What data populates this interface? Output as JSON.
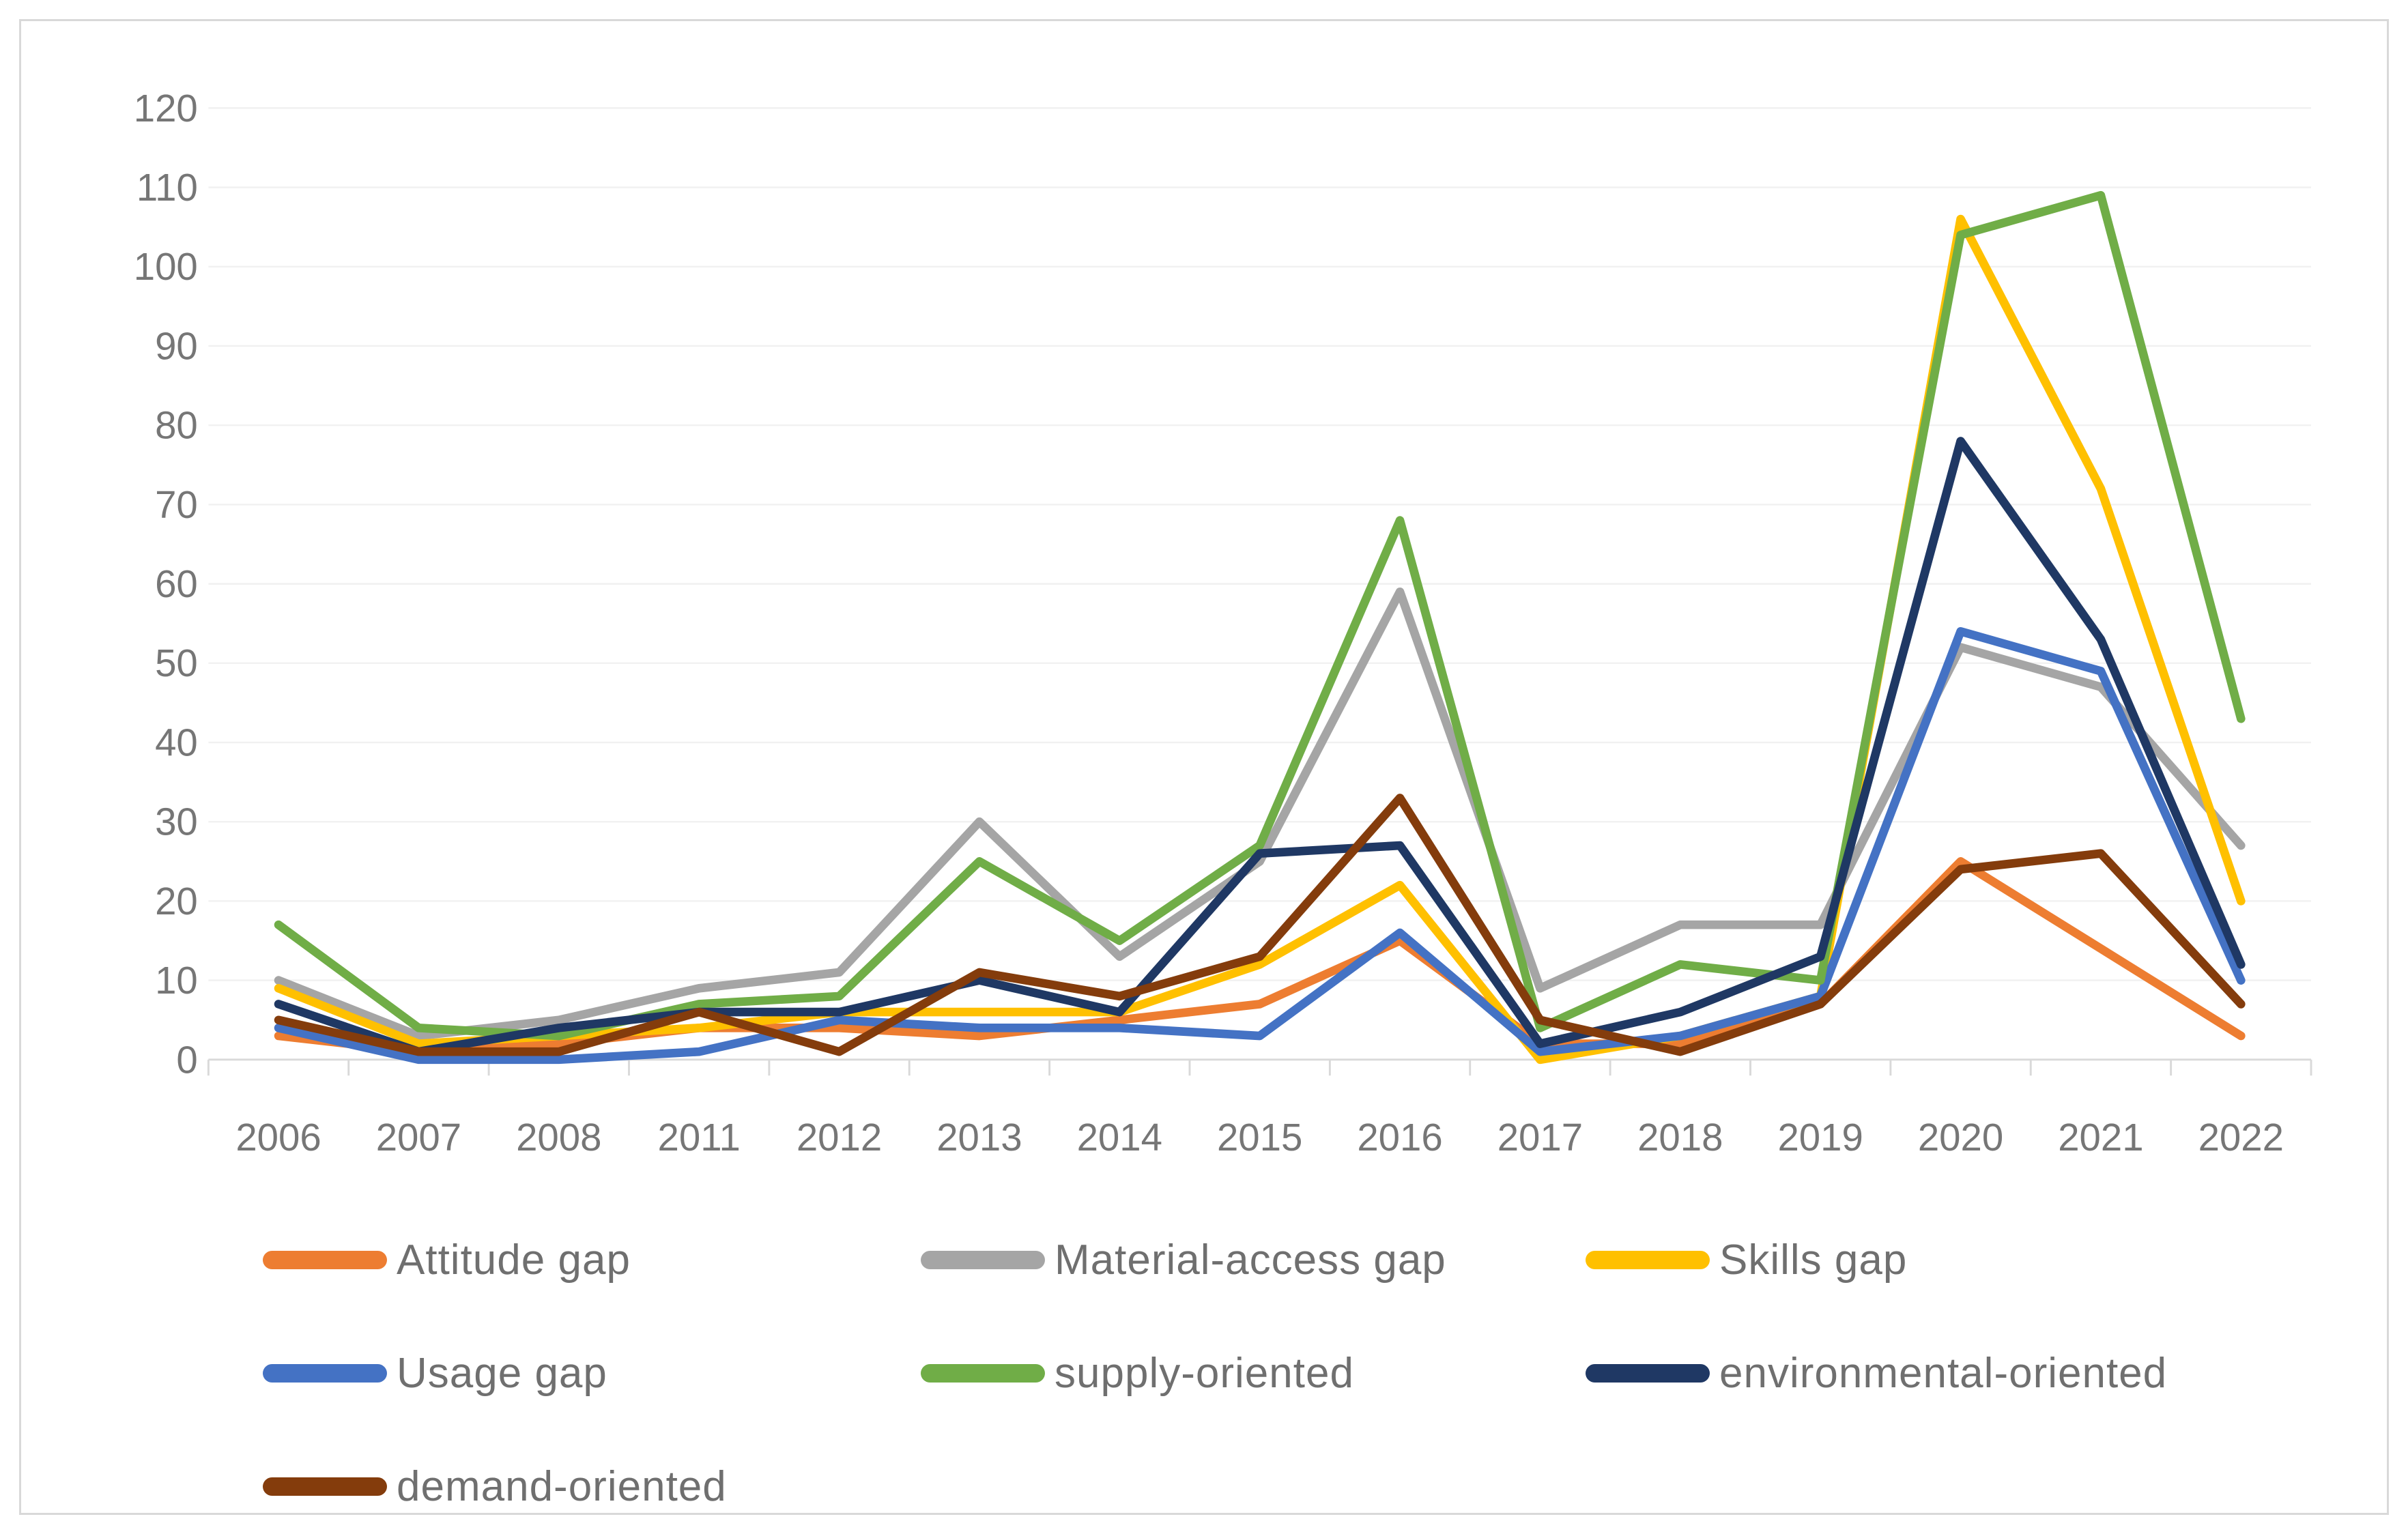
{
  "window": {
    "background": "#ffffff",
    "frame_border_color": "#d9d9d9"
  },
  "chart_data": {
    "type": "line",
    "title": "",
    "xlabel": "",
    "ylabel": "",
    "categories": [
      "2006",
      "2007",
      "2008",
      "2011",
      "2012",
      "2013",
      "2014",
      "2015",
      "2016",
      "2017",
      "2018",
      "2019",
      "2020",
      "2021",
      "2022"
    ],
    "series": [
      {
        "name": "Attitude gap",
        "color": "#ED7D31",
        "values": [
          3,
          1,
          2,
          4,
          4,
          3,
          5,
          7,
          15,
          2,
          2,
          7,
          25,
          14,
          3
        ]
      },
      {
        "name": "Material-access gap",
        "color": "#A5A5A5",
        "values": [
          10,
          3,
          5,
          9,
          11,
          30,
          13,
          25,
          59,
          9,
          17,
          17,
          52,
          47,
          27
        ]
      },
      {
        "name": "Skills gap",
        "color": "#FFC000",
        "values": [
          9,
          2,
          3,
          4,
          6,
          6,
          6,
          12,
          22,
          0,
          3,
          8,
          106,
          72,
          20
        ]
      },
      {
        "name": "Usage gap",
        "color": "#4472C4",
        "values": [
          4,
          0,
          0,
          1,
          5,
          4,
          4,
          3,
          16,
          1,
          3,
          8,
          54,
          49,
          10
        ]
      },
      {
        "name": "supply-oriented",
        "color": "#70AD47",
        "values": [
          17,
          4,
          3,
          7,
          8,
          25,
          15,
          27,
          68,
          4,
          12,
          10,
          104,
          109,
          43
        ]
      },
      {
        "name": "environmental-oriented",
        "color": "#1F3864",
        "values": [
          7,
          1,
          4,
          6,
          6,
          10,
          6,
          26,
          27,
          2,
          6,
          13,
          78,
          53,
          12
        ]
      },
      {
        "name": "demand-oriented",
        "color": "#843C0C",
        "values": [
          5,
          1,
          1,
          6,
          1,
          11,
          8,
          13,
          33,
          5,
          1,
          7,
          24,
          26,
          7
        ]
      }
    ],
    "ylim": [
      0,
      120
    ],
    "ytick_step": 10,
    "ytick_labels": [
      "0",
      "10",
      "20",
      "30",
      "40",
      "50",
      "60",
      "70",
      "80",
      "90",
      "100",
      "110",
      "120"
    ],
    "grid": "horizontal",
    "gridline_color": "#f1f1f1",
    "axis_line_color": "#d9d9d9",
    "axis_label_color": "#767676",
    "legend_text_color": "#6f6f6f",
    "legend_position": "bottom-left",
    "legend_rows": [
      [
        "Attitude gap",
        "Material-access gap",
        "Skills gap"
      ],
      [
        "Usage gap",
        "supply-oriented",
        "environmental-oriented"
      ],
      [
        "demand-oriented"
      ]
    ]
  }
}
